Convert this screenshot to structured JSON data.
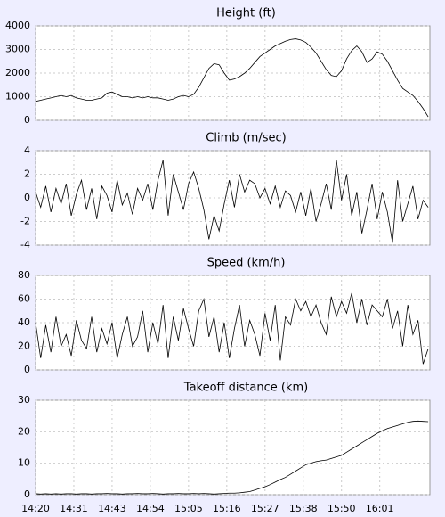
{
  "chart_data": {
    "type": "line",
    "color": "#000000",
    "grid": true,
    "x": [
      0,
      1.5,
      3,
      4.5,
      6,
      7.5,
      9,
      10.5,
      12,
      13.5,
      15,
      16.5,
      18,
      19.5,
      21,
      22.5,
      24,
      25.5,
      27,
      28.5,
      30,
      31.5,
      33,
      34.5,
      36,
      37.5,
      39,
      40.5,
      42,
      43.5,
      45,
      46.5,
      48,
      49.5,
      51,
      52.5,
      54,
      55.5,
      57,
      58.5,
      60,
      61.5,
      63,
      64.5,
      66,
      67.5,
      69,
      70.5,
      72,
      73.5,
      75,
      76.5,
      78,
      79.5,
      81,
      82.5,
      84,
      85.5,
      87,
      88.5,
      90,
      91.5,
      93,
      94.5,
      96,
      97.5,
      99,
      100.5,
      102,
      103.5,
      105,
      106.5,
      108,
      109.5,
      111,
      112.5,
      114,
      115.5
    ],
    "xlim": [
      0,
      116
    ],
    "xticks": [
      {
        "value": 0,
        "label": "14:20"
      },
      {
        "value": 11.25,
        "label": "14:31"
      },
      {
        "value": 22.5,
        "label": "14:43"
      },
      {
        "value": 33.75,
        "label": "14:54"
      },
      {
        "value": 45,
        "label": "15:05"
      },
      {
        "value": 56.25,
        "label": "15:16"
      },
      {
        "value": 67.5,
        "label": "15:27"
      },
      {
        "value": 78.75,
        "label": "15:38"
      },
      {
        "value": 90,
        "label": "15:50"
      },
      {
        "value": 101.25,
        "label": "16:01"
      }
    ],
    "series": [
      {
        "name": "Height (ft)",
        "ylim": [
          0,
          4000
        ],
        "yticks": [
          0,
          1000,
          2000,
          3000,
          4000
        ],
        "values": [
          800,
          850,
          900,
          950,
          1000,
          1050,
          1000,
          1050,
          950,
          900,
          850,
          850,
          900,
          950,
          1150,
          1200,
          1100,
          1000,
          1000,
          950,
          1000,
          950,
          1000,
          950,
          950,
          900,
          850,
          900,
          1000,
          1050,
          1000,
          1100,
          1400,
          1800,
          2200,
          2400,
          2350,
          2000,
          1700,
          1750,
          1850,
          2000,
          2200,
          2450,
          2700,
          2850,
          3000,
          3150,
          3250,
          3350,
          3420,
          3450,
          3400,
          3300,
          3100,
          2850,
          2500,
          2150,
          1900,
          1850,
          2100,
          2600,
          2950,
          3150,
          2900,
          2450,
          2600,
          2900,
          2800,
          2500,
          2100,
          1700,
          1350,
          1200,
          1050,
          800,
          500,
          150
        ]
      },
      {
        "name": "Climb (m/sec)",
        "ylim": [
          -4,
          4
        ],
        "yticks": [
          -4,
          -2,
          0,
          2,
          4
        ],
        "values": [
          0.5,
          -0.8,
          1.0,
          -1.2,
          0.8,
          -0.5,
          1.2,
          -1.5,
          0.3,
          1.5,
          -1.0,
          0.8,
          -1.8,
          1.0,
          0.2,
          -1.2,
          1.5,
          -0.6,
          0.4,
          -1.4,
          0.8,
          -0.2,
          1.2,
          -1.0,
          1.5,
          3.2,
          -1.5,
          2.0,
          0.5,
          -1.0,
          1.2,
          2.2,
          0.8,
          -1.0,
          -3.5,
          -1.5,
          -2.8,
          -0.5,
          1.5,
          -0.8,
          2.0,
          0.5,
          1.5,
          1.2,
          0.0,
          0.8,
          -0.5,
          1.0,
          -0.8,
          0.6,
          0.2,
          -1.2,
          0.5,
          -1.5,
          0.8,
          -2.0,
          -0.5,
          1.2,
          -1.0,
          3.2,
          -0.2,
          2.0,
          -1.5,
          0.5,
          -3.0,
          -1.0,
          1.2,
          -1.8,
          0.5,
          -1.2,
          -3.8,
          1.5,
          -2.0,
          -0.5,
          1.0,
          -1.8,
          -0.2,
          -0.8
        ]
      },
      {
        "name": "Speed (km/h)",
        "ylim": [
          0,
          80
        ],
        "yticks": [
          0,
          20,
          40,
          60,
          80
        ],
        "values": [
          40,
          10,
          38,
          15,
          45,
          20,
          30,
          12,
          42,
          25,
          18,
          45,
          15,
          35,
          22,
          40,
          10,
          30,
          45,
          20,
          28,
          50,
          15,
          40,
          22,
          55,
          10,
          45,
          25,
          52,
          35,
          20,
          50,
          60,
          28,
          45,
          15,
          40,
          10,
          35,
          55,
          20,
          42,
          30,
          12,
          48,
          25,
          55,
          8,
          45,
          38,
          60,
          50,
          58,
          45,
          55,
          40,
          30,
          62,
          45,
          58,
          48,
          65,
          40,
          60,
          38,
          55,
          50,
          45,
          60,
          35,
          50,
          20,
          55,
          30,
          42,
          5,
          18
        ]
      },
      {
        "name": "Takeoff distance (km)",
        "ylim": [
          0,
          30
        ],
        "yticks": [
          0,
          10,
          20,
          30
        ],
        "values": [
          0.3,
          0.2,
          0.3,
          0.2,
          0.3,
          0.2,
          0.3,
          0.3,
          0.2,
          0.3,
          0.3,
          0.2,
          0.3,
          0.3,
          0.4,
          0.3,
          0.3,
          0.2,
          0.3,
          0.3,
          0.4,
          0.3,
          0.3,
          0.4,
          0.3,
          0.2,
          0.3,
          0.3,
          0.4,
          0.3,
          0.3,
          0.4,
          0.3,
          0.4,
          0.3,
          0.2,
          0.3,
          0.4,
          0.5,
          0.5,
          0.6,
          0.8,
          1.0,
          1.5,
          2.0,
          2.5,
          3.2,
          4.0,
          4.8,
          5.5,
          6.5,
          7.5,
          8.5,
          9.5,
          10.0,
          10.5,
          10.8,
          11.0,
          11.5,
          12.0,
          12.5,
          13.5,
          14.5,
          15.5,
          16.5,
          17.5,
          18.5,
          19.5,
          20.3,
          21.0,
          21.5,
          22.0,
          22.5,
          23.0,
          23.3,
          23.4,
          23.3,
          23.2
        ]
      }
    ]
  }
}
